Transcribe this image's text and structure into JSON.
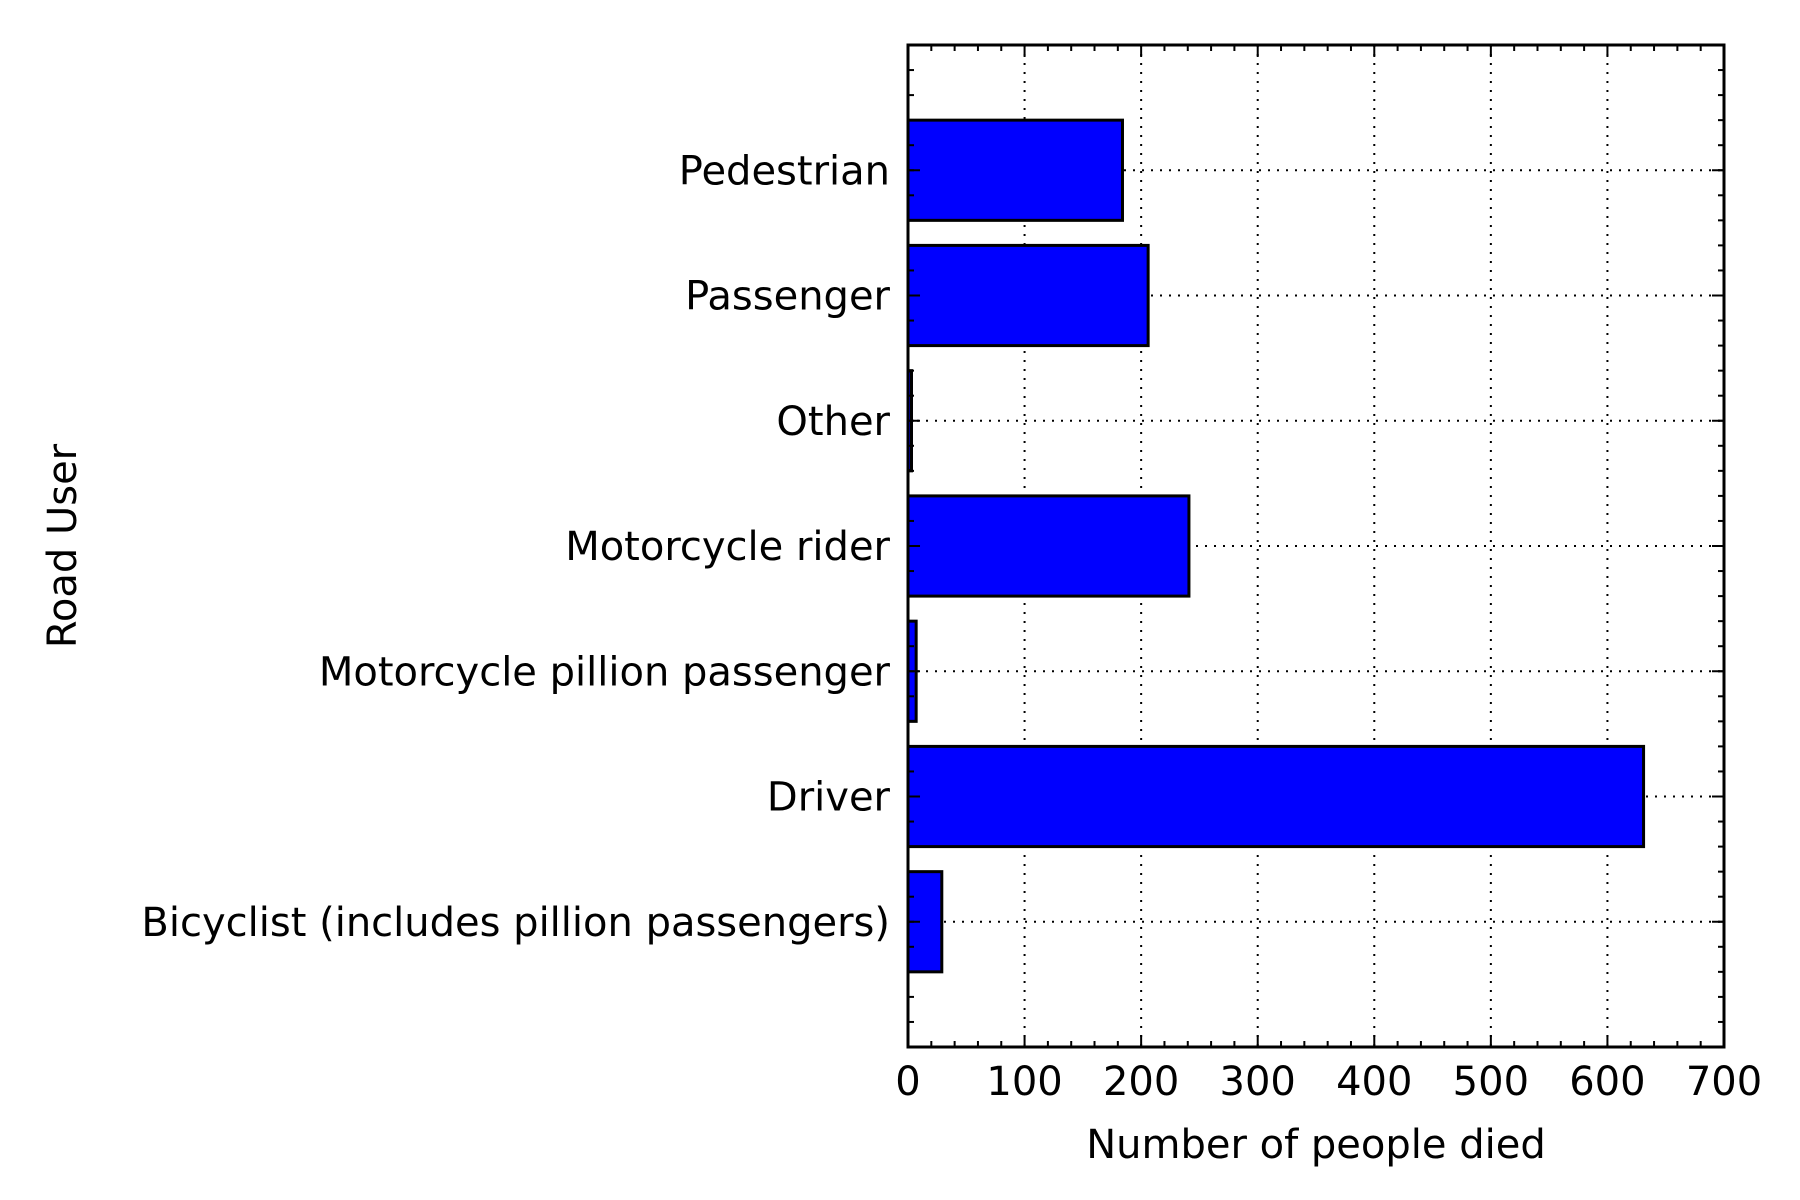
{
  "chart_data": {
    "type": "bar",
    "orientation": "horizontal",
    "categories": [
      "Bicyclist (includes pillion passengers)",
      "Driver",
      "Motorcycle pillion passenger",
      "Motorcycle rider",
      "Other",
      "Passenger",
      "Pedestrian"
    ],
    "values": [
      29,
      631,
      7,
      241,
      3,
      206,
      184
    ],
    "title": "",
    "xlabel": "Number of people died",
    "ylabel": "Road User",
    "xlim": [
      0,
      700
    ],
    "xticks": [
      "0",
      "100",
      "200",
      "300",
      "400",
      "500",
      "600",
      "700"
    ],
    "grid": true,
    "grid_style": "dotted",
    "bar_color": "#0000ff",
    "edge_color": "#000000",
    "legend": "none"
  }
}
